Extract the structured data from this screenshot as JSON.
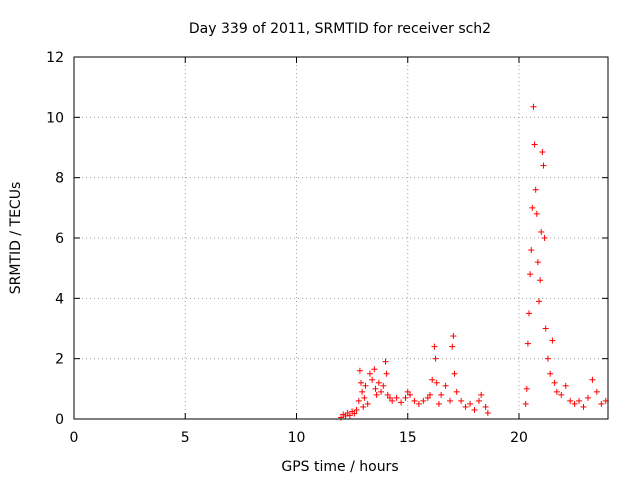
{
  "chart_data": {
    "type": "scatter",
    "title": "Day 339 of 2011, SRMTID for receiver sch2",
    "xlabel": "GPS time / hours",
    "ylabel": "SRMTID / TECUs",
    "xlim": [
      0,
      24
    ],
    "ylim": [
      0,
      12
    ],
    "xticks": [
      "0",
      "5",
      "10",
      "15",
      "20"
    ],
    "yticks": [
      "0",
      "2",
      "4",
      "6",
      "8",
      "10",
      "12"
    ],
    "grid": true,
    "marker": "+",
    "color": "#ff0000",
    "series": [
      {
        "name": "",
        "points": [
          [
            12.0,
            0.05
          ],
          [
            12.1,
            0.15
          ],
          [
            12.2,
            0.1
          ],
          [
            12.3,
            0.2
          ],
          [
            12.4,
            0.12
          ],
          [
            12.5,
            0.25
          ],
          [
            12.6,
            0.18
          ],
          [
            12.7,
            0.3
          ],
          [
            12.8,
            0.6
          ],
          [
            12.85,
            1.6
          ],
          [
            12.9,
            1.2
          ],
          [
            12.95,
            0.9
          ],
          [
            13.0,
            0.4
          ],
          [
            13.05,
            0.7
          ],
          [
            13.1,
            1.1
          ],
          [
            13.2,
            0.5
          ],
          [
            13.3,
            1.5
          ],
          [
            13.4,
            1.3
          ],
          [
            13.5,
            1.65
          ],
          [
            13.55,
            1.0
          ],
          [
            13.6,
            0.8
          ],
          [
            13.7,
            1.2
          ],
          [
            13.8,
            0.9
          ],
          [
            13.9,
            1.1
          ],
          [
            14.0,
            1.9
          ],
          [
            14.05,
            1.5
          ],
          [
            14.1,
            0.8
          ],
          [
            14.2,
            0.7
          ],
          [
            14.3,
            0.6
          ],
          [
            14.5,
            0.7
          ],
          [
            14.7,
            0.55
          ],
          [
            14.9,
            0.7
          ],
          [
            15.0,
            0.9
          ],
          [
            15.1,
            0.8
          ],
          [
            15.3,
            0.6
          ],
          [
            15.5,
            0.5
          ],
          [
            15.7,
            0.6
          ],
          [
            15.9,
            0.7
          ],
          [
            16.0,
            0.8
          ],
          [
            16.1,
            1.3
          ],
          [
            16.2,
            2.4
          ],
          [
            16.25,
            2.0
          ],
          [
            16.3,
            1.2
          ],
          [
            16.4,
            0.5
          ],
          [
            16.5,
            0.8
          ],
          [
            16.7,
            1.1
          ],
          [
            16.9,
            0.6
          ],
          [
            17.0,
            2.4
          ],
          [
            17.05,
            2.75
          ],
          [
            17.1,
            1.5
          ],
          [
            17.2,
            0.9
          ],
          [
            17.4,
            0.6
          ],
          [
            17.6,
            0.4
          ],
          [
            17.8,
            0.5
          ],
          [
            18.0,
            0.3
          ],
          [
            18.2,
            0.6
          ],
          [
            18.3,
            0.8
          ],
          [
            18.5,
            0.4
          ],
          [
            18.6,
            0.2
          ],
          [
            20.3,
            0.5
          ],
          [
            20.35,
            1.0
          ],
          [
            20.4,
            2.5
          ],
          [
            20.45,
            3.5
          ],
          [
            20.5,
            4.8
          ],
          [
            20.55,
            5.6
          ],
          [
            20.6,
            7.0
          ],
          [
            20.65,
            10.35
          ],
          [
            20.7,
            9.1
          ],
          [
            20.75,
            7.6
          ],
          [
            20.8,
            6.8
          ],
          [
            20.85,
            5.2
          ],
          [
            20.9,
            3.9
          ],
          [
            20.95,
            4.6
          ],
          [
            21.0,
            6.2
          ],
          [
            21.05,
            8.85
          ],
          [
            21.1,
            8.4
          ],
          [
            21.15,
            6.0
          ],
          [
            21.2,
            3.0
          ],
          [
            21.3,
            2.0
          ],
          [
            21.4,
            1.5
          ],
          [
            21.5,
            2.6
          ],
          [
            21.6,
            1.2
          ],
          [
            21.7,
            0.9
          ],
          [
            21.9,
            0.8
          ],
          [
            22.1,
            1.1
          ],
          [
            22.3,
            0.6
          ],
          [
            22.5,
            0.5
          ],
          [
            22.7,
            0.6
          ],
          [
            22.9,
            0.4
          ],
          [
            23.1,
            0.7
          ],
          [
            23.3,
            1.3
          ],
          [
            23.5,
            0.9
          ],
          [
            23.7,
            0.5
          ],
          [
            23.9,
            0.6
          ]
        ]
      }
    ]
  }
}
